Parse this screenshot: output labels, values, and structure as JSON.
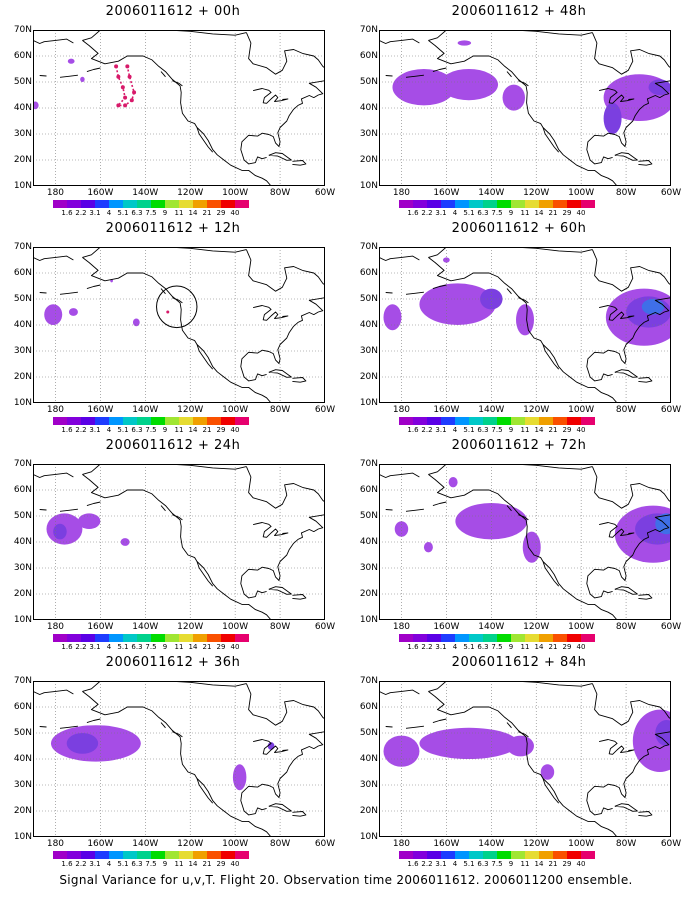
{
  "caption": "Signal Variance for u,v,T. Flight 20. Observation time 2006011612. 2006011200 ensemble.",
  "panels": [
    {
      "title": "2006011612 + 00h",
      "blobs": [
        {
          "lon": -150,
          "lat": 48,
          "rlon": 5,
          "rlat": 6,
          "lvl": "dots"
        },
        {
          "lon": -173,
          "lat": 58,
          "rlon": 1.5,
          "rlat": 1,
          "lvl": 0
        },
        {
          "lon": -168,
          "lat": 51,
          "rlon": 1,
          "rlat": 1,
          "lvl": 0
        },
        {
          "lon": -189,
          "lat": 41,
          "rlon": 1.5,
          "rlat": 1.5,
          "lvl": 0
        }
      ]
    },
    {
      "title": "2006011612 + 48h",
      "blobs": [
        {
          "lon": -170,
          "lat": 48,
          "rlon": 14,
          "rlat": 7,
          "lvl": 0
        },
        {
          "lon": -150,
          "lat": 49,
          "rlon": 13,
          "rlat": 6,
          "lvl": 0
        },
        {
          "lon": -130,
          "lat": 44,
          "rlon": 5,
          "rlat": 5,
          "lvl": 0
        },
        {
          "lon": -152,
          "lat": 65,
          "rlon": 3,
          "rlat": 1,
          "lvl": 0
        },
        {
          "lon": -74,
          "lat": 44,
          "rlon": 16,
          "rlat": 9,
          "lvl": 0
        },
        {
          "lon": -86,
          "lat": 36,
          "rlon": 4,
          "rlat": 6,
          "lvl": 1
        },
        {
          "lon": -65,
          "lat": 48,
          "rlon": 5,
          "rlat": 3,
          "lvl": 1
        }
      ]
    },
    {
      "title": "2006011612 + 12h",
      "blobs": [
        {
          "lon": -181,
          "lat": 44,
          "rlon": 4,
          "rlat": 4,
          "lvl": 0
        },
        {
          "lon": -172,
          "lat": 45,
          "rlon": 2,
          "rlat": 1.5,
          "lvl": 0
        },
        {
          "lon": -144,
          "lat": 41,
          "rlon": 1.5,
          "rlat": 1.5,
          "lvl": 0
        },
        {
          "lon": -155,
          "lat": 57,
          "rlon": 0.6,
          "rlat": 0.6,
          "lvl": 0
        },
        {
          "lon": -130,
          "lat": 45,
          "rlon": 0.5,
          "rlat": 0.5,
          "lvl": "dot"
        }
      ],
      "circle": {
        "lon": -126,
        "lat": 47,
        "rlon": 9,
        "rlat": 8
      }
    },
    {
      "title": "2006011612 + 60h",
      "blobs": [
        {
          "lon": -184,
          "lat": 43,
          "rlon": 4,
          "rlat": 5,
          "lvl": 0
        },
        {
          "lon": -155,
          "lat": 48,
          "rlon": 17,
          "rlat": 8,
          "lvl": 0
        },
        {
          "lon": -140,
          "lat": 50,
          "rlon": 5,
          "rlat": 4,
          "lvl": 1
        },
        {
          "lon": -125,
          "lat": 42,
          "rlon": 4,
          "rlat": 6,
          "lvl": 0
        },
        {
          "lon": -160,
          "lat": 65,
          "rlon": 1.5,
          "rlat": 1,
          "lvl": 0
        },
        {
          "lon": -72,
          "lat": 43,
          "rlon": 17,
          "rlat": 11,
          "lvl": 0
        },
        {
          "lon": -70,
          "lat": 45,
          "rlon": 10,
          "rlat": 6,
          "lvl": 1
        },
        {
          "lon": -68,
          "lat": 47,
          "rlon": 5,
          "rlat": 3,
          "lvl": 2
        }
      ]
    },
    {
      "title": "2006011612 + 24h",
      "blobs": [
        {
          "lon": -176,
          "lat": 45,
          "rlon": 8,
          "rlat": 6,
          "lvl": 0
        },
        {
          "lon": -165,
          "lat": 48,
          "rlon": 5,
          "rlat": 3,
          "lvl": 0
        },
        {
          "lon": -178,
          "lat": 44,
          "rlon": 3,
          "rlat": 3,
          "lvl": 1
        },
        {
          "lon": -149,
          "lat": 40,
          "rlon": 2,
          "rlat": 1.5,
          "lvl": 0
        }
      ]
    },
    {
      "title": "2006011612 + 72h",
      "blobs": [
        {
          "lon": -180,
          "lat": 45,
          "rlon": 3,
          "rlat": 3,
          "lvl": 0
        },
        {
          "lon": -168,
          "lat": 38,
          "rlon": 2,
          "rlat": 2,
          "lvl": 0
        },
        {
          "lon": -140,
          "lat": 48,
          "rlon": 16,
          "rlat": 7,
          "lvl": 0
        },
        {
          "lon": -157,
          "lat": 63,
          "rlon": 2,
          "rlat": 2,
          "lvl": 0
        },
        {
          "lon": -122,
          "lat": 38,
          "rlon": 4,
          "rlat": 6,
          "lvl": 0
        },
        {
          "lon": -68,
          "lat": 43,
          "rlon": 17,
          "rlat": 11,
          "lvl": 0
        },
        {
          "lon": -66,
          "lat": 45,
          "rlon": 10,
          "rlat": 6,
          "lvl": 1
        },
        {
          "lon": -62,
          "lat": 47,
          "rlon": 5,
          "rlat": 4,
          "lvl": 2
        }
      ]
    },
    {
      "title": "2006011612 + 36h",
      "blobs": [
        {
          "lon": -162,
          "lat": 46,
          "rlon": 20,
          "rlat": 7,
          "lvl": 0
        },
        {
          "lon": -168,
          "lat": 46,
          "rlon": 7,
          "rlat": 4,
          "lvl": 1
        },
        {
          "lon": -98,
          "lat": 33,
          "rlon": 3,
          "rlat": 5,
          "lvl": 0
        },
        {
          "lon": -84,
          "lat": 45,
          "rlon": 1.5,
          "rlat": 1.5,
          "lvl": 1
        }
      ]
    },
    {
      "title": "2006011612 + 84h",
      "blobs": [
        {
          "lon": -180,
          "lat": 43,
          "rlon": 8,
          "rlat": 6,
          "lvl": 0
        },
        {
          "lon": -150,
          "lat": 46,
          "rlon": 22,
          "rlat": 6,
          "lvl": 0
        },
        {
          "lon": -127,
          "lat": 45,
          "rlon": 6,
          "rlat": 4,
          "lvl": 0
        },
        {
          "lon": -115,
          "lat": 35,
          "rlon": 3,
          "rlat": 3,
          "lvl": 0
        },
        {
          "lon": -65,
          "lat": 47,
          "rlon": 12,
          "rlat": 12,
          "lvl": 0
        },
        {
          "lon": -62,
          "lat": 50,
          "rlon": 5,
          "rlat": 5,
          "lvl": 1
        }
      ]
    }
  ],
  "axes": {
    "lat_labels": [
      "70N",
      "60N",
      "50N",
      "40N",
      "30N",
      "20N",
      "10N"
    ],
    "lat_values": [
      70,
      60,
      50,
      40,
      30,
      20,
      10
    ],
    "lon_labels": [
      "180",
      "160W",
      "140W",
      "120W",
      "100W",
      "80W",
      "60W"
    ],
    "lon_values": [
      -180,
      -160,
      -140,
      -120,
      -100,
      -80,
      -60
    ],
    "lon_range": [
      -190,
      -60
    ],
    "lat_range": [
      10,
      70
    ],
    "gridlines": "dotted"
  },
  "colorbar": {
    "labels": [
      "1.6",
      "2.2",
      "3.1",
      "4",
      "5.1",
      "6.3",
      "7.5",
      "9",
      "11",
      "14",
      "21",
      "29",
      "40"
    ],
    "colors": [
      "#a000c8",
      "#8200dc",
      "#5a00e6",
      "#1e3cff",
      "#0096ff",
      "#00c8c8",
      "#00d28c",
      "#00dc00",
      "#a0e632",
      "#e6dc32",
      "#f0a000",
      "#fa5000",
      "#f00000",
      "#e6006e"
    ]
  },
  "fill_colors": [
    "#a64de6",
    "#7b3fe0",
    "#3f6fe8"
  ],
  "dot_color": "#d81a6a"
}
